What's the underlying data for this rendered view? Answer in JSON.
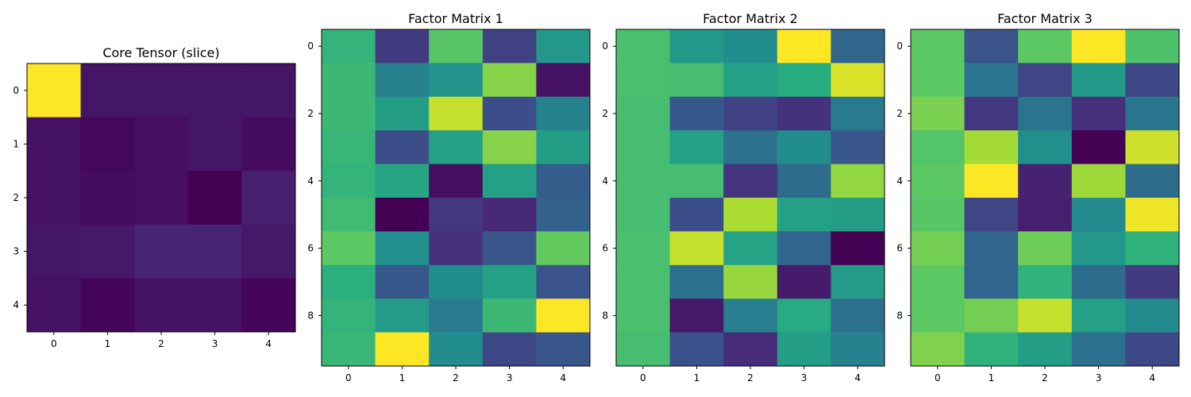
{
  "chart_data": [
    {
      "type": "heatmap",
      "title": "Core Tensor (slice)",
      "colormap": "viridis",
      "x_ticks": [
        "0",
        "1",
        "2",
        "3",
        "4"
      ],
      "y_ticks": [
        "0",
        "1",
        "2",
        "3",
        "4"
      ],
      "matrix": [
        [
          1.0,
          0.06,
          0.06,
          0.06,
          0.06
        ],
        [
          0.05,
          0.02,
          0.04,
          0.06,
          0.03
        ],
        [
          0.05,
          0.03,
          0.04,
          0.0,
          0.09
        ],
        [
          0.06,
          0.07,
          0.11,
          0.11,
          0.07
        ],
        [
          0.05,
          0.01,
          0.05,
          0.05,
          0.01
        ]
      ]
    },
    {
      "type": "heatmap",
      "title": "Factor Matrix 1",
      "colormap": "viridis",
      "x_ticks": [
        "0",
        "1",
        "2",
        "3",
        "4"
      ],
      "y_ticks": [
        "0",
        "2",
        "4",
        "6",
        "8"
      ],
      "matrix": [
        [
          0.66,
          0.18,
          0.74,
          0.2,
          0.53
        ],
        [
          0.68,
          0.44,
          0.52,
          0.82,
          0.05
        ],
        [
          0.68,
          0.56,
          0.92,
          0.24,
          0.45
        ],
        [
          0.67,
          0.24,
          0.57,
          0.82,
          0.56
        ],
        [
          0.66,
          0.6,
          0.04,
          0.57,
          0.3
        ],
        [
          0.69,
          0.0,
          0.17,
          0.12,
          0.32
        ],
        [
          0.75,
          0.5,
          0.14,
          0.27,
          0.76
        ],
        [
          0.64,
          0.28,
          0.49,
          0.57,
          0.26
        ],
        [
          0.66,
          0.55,
          0.42,
          0.68,
          1.0
        ],
        [
          0.67,
          1.0,
          0.49,
          0.22,
          0.27
        ]
      ]
    },
    {
      "type": "heatmap",
      "title": "Factor Matrix 2",
      "colormap": "viridis",
      "x_ticks": [
        "0",
        "1",
        "2",
        "3",
        "4"
      ],
      "y_ticks": [
        "0",
        "2",
        "4",
        "6",
        "8"
      ],
      "matrix": [
        [
          0.71,
          0.54,
          0.49,
          1.0,
          0.34
        ],
        [
          0.71,
          0.7,
          0.57,
          0.63,
          0.95
        ],
        [
          0.7,
          0.28,
          0.2,
          0.15,
          0.42
        ],
        [
          0.7,
          0.57,
          0.38,
          0.49,
          0.27
        ],
        [
          0.7,
          0.7,
          0.16,
          0.36,
          0.84
        ],
        [
          0.7,
          0.24,
          0.88,
          0.57,
          0.56
        ],
        [
          0.71,
          0.92,
          0.59,
          0.33,
          0.0
        ],
        [
          0.71,
          0.37,
          0.85,
          0.08,
          0.55
        ],
        [
          0.71,
          0.07,
          0.43,
          0.62,
          0.37
        ],
        [
          0.7,
          0.25,
          0.13,
          0.56,
          0.44
        ]
      ]
    },
    {
      "type": "heatmap",
      "title": "Factor Matrix 3",
      "colormap": "viridis",
      "x_ticks": [
        "0",
        "1",
        "2",
        "3",
        "4"
      ],
      "y_ticks": [
        "0",
        "2",
        "4",
        "6",
        "8"
      ],
      "matrix": [
        [
          0.75,
          0.26,
          0.75,
          1.0,
          0.72
        ],
        [
          0.75,
          0.39,
          0.21,
          0.54,
          0.22
        ],
        [
          0.8,
          0.17,
          0.39,
          0.14,
          0.4
        ],
        [
          0.73,
          0.87,
          0.5,
          0.0,
          0.93
        ],
        [
          0.75,
          1.0,
          0.1,
          0.86,
          0.36
        ],
        [
          0.74,
          0.21,
          0.09,
          0.48,
          0.98
        ],
        [
          0.79,
          0.33,
          0.78,
          0.53,
          0.65
        ],
        [
          0.75,
          0.33,
          0.65,
          0.36,
          0.18
        ],
        [
          0.75,
          0.79,
          0.92,
          0.57,
          0.48
        ],
        [
          0.81,
          0.65,
          0.56,
          0.37,
          0.22
        ]
      ]
    }
  ]
}
